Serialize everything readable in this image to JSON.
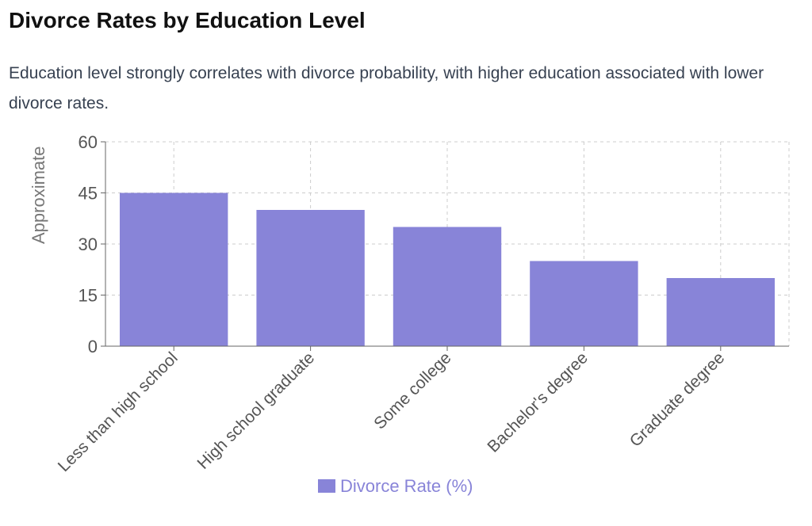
{
  "page": {
    "title": "Divorce Rates by Education Level",
    "description": "Education level strongly correlates with divorce probability, with higher education associated with lower divorce rates."
  },
  "chart_data": {
    "type": "bar",
    "categories": [
      "Less than high school",
      "High school graduate",
      "Some college",
      "Bachelor's degree",
      "Graduate degree"
    ],
    "series": [
      {
        "name": "Divorce Rate (%)",
        "values": [
          45,
          40,
          35,
          25,
          20
        ],
        "color": "#8884d8"
      }
    ],
    "ylabel": "Approximate",
    "ylim": [
      0,
      60
    ],
    "yticks": [
      "0",
      "15",
      "30",
      "45",
      "60"
    ],
    "grid": true,
    "legend_position": "bottom"
  },
  "colors": {
    "bar": "#8884d8",
    "grid": "#cccccc",
    "axis": "#666666",
    "tick_text": "#555555"
  }
}
